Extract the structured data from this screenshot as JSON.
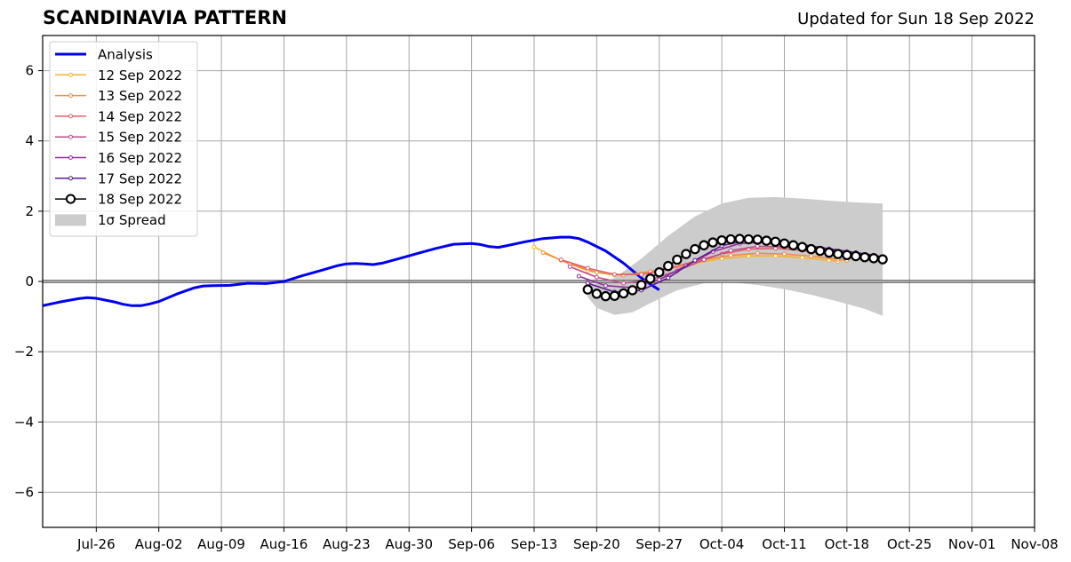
{
  "chart_data": {
    "type": "line",
    "title": "SCANDINAVIA PATTERN",
    "subtitle": "Updated for Sun 18 Sep 2022",
    "xlabel": "",
    "ylabel": "",
    "x_range": [
      "2022-07-20",
      "2022-11-08"
    ],
    "ylim": [
      -7,
      7
    ],
    "x_ticks": [
      {
        "date": "2022-07-26",
        "label": "Jul-26"
      },
      {
        "date": "2022-08-02",
        "label": "Aug-02"
      },
      {
        "date": "2022-08-09",
        "label": "Aug-09"
      },
      {
        "date": "2022-08-16",
        "label": "Aug-16"
      },
      {
        "date": "2022-08-23",
        "label": "Aug-23"
      },
      {
        "date": "2022-08-30",
        "label": "Aug-30"
      },
      {
        "date": "2022-09-06",
        "label": "Sep-06"
      },
      {
        "date": "2022-09-13",
        "label": "Sep-13"
      },
      {
        "date": "2022-09-20",
        "label": "Sep-20"
      },
      {
        "date": "2022-09-27",
        "label": "Sep-27"
      },
      {
        "date": "2022-10-04",
        "label": "Oct-04"
      },
      {
        "date": "2022-10-11",
        "label": "Oct-11"
      },
      {
        "date": "2022-10-18",
        "label": "Oct-18"
      },
      {
        "date": "2022-10-25",
        "label": "Oct-25"
      },
      {
        "date": "2022-11-01",
        "label": "Nov-01"
      },
      {
        "date": "2022-11-08",
        "label": "Nov-08"
      }
    ],
    "y_ticks": [
      {
        "value": -6,
        "label": "−6"
      },
      {
        "value": -4,
        "label": "−4"
      },
      {
        "value": -2,
        "label": "−2"
      },
      {
        "value": 0,
        "label": "0"
      },
      {
        "value": 2,
        "label": "2"
      },
      {
        "value": 4,
        "label": "4"
      },
      {
        "value": 6,
        "label": "6"
      }
    ],
    "grid": true,
    "legend_position": "top-left",
    "zero_line": 0,
    "analysis": {
      "name": "Analysis",
      "color": "#0000ee",
      "points": [
        [
          "2022-07-20",
          -0.69
        ],
        [
          "2022-07-22",
          -0.58
        ],
        [
          "2022-07-24",
          -0.49
        ],
        [
          "2022-07-25",
          -0.46
        ],
        [
          "2022-07-26",
          -0.48
        ],
        [
          "2022-07-28",
          -0.58
        ],
        [
          "2022-07-29",
          -0.65
        ],
        [
          "2022-07-30",
          -0.69
        ],
        [
          "2022-07-31",
          -0.69
        ],
        [
          "2022-08-01",
          -0.64
        ],
        [
          "2022-08-02",
          -0.57
        ],
        [
          "2022-08-04",
          -0.36
        ],
        [
          "2022-08-06",
          -0.18
        ],
        [
          "2022-08-07",
          -0.13
        ],
        [
          "2022-08-08",
          -0.12
        ],
        [
          "2022-08-10",
          -0.11
        ],
        [
          "2022-08-12",
          -0.05
        ],
        [
          "2022-08-14",
          -0.06
        ],
        [
          "2022-08-16",
          0.0
        ],
        [
          "2022-08-18",
          0.16
        ],
        [
          "2022-08-20",
          0.3
        ],
        [
          "2022-08-22",
          0.45
        ],
        [
          "2022-08-23",
          0.5
        ],
        [
          "2022-08-24",
          0.51
        ],
        [
          "2022-08-25",
          0.5
        ],
        [
          "2022-08-26",
          0.48
        ],
        [
          "2022-08-27",
          0.52
        ],
        [
          "2022-08-29",
          0.66
        ],
        [
          "2022-08-31",
          0.8
        ],
        [
          "2022-09-02",
          0.94
        ],
        [
          "2022-09-04",
          1.06
        ],
        [
          "2022-09-06",
          1.08
        ],
        [
          "2022-09-07",
          1.05
        ],
        [
          "2022-09-08",
          0.99
        ],
        [
          "2022-09-09",
          0.97
        ],
        [
          "2022-09-10",
          1.02
        ],
        [
          "2022-09-12",
          1.13
        ],
        [
          "2022-09-14",
          1.22
        ],
        [
          "2022-09-16",
          1.26
        ],
        [
          "2022-09-17",
          1.26
        ],
        [
          "2022-09-18",
          1.22
        ],
        [
          "2022-09-19",
          1.12
        ],
        [
          "2022-09-21",
          0.87
        ],
        [
          "2022-09-23",
          0.52
        ],
        [
          "2022-09-25",
          0.1
        ],
        [
          "2022-09-26",
          -0.08
        ],
        [
          "2022-09-27",
          -0.24
        ]
      ]
    },
    "forecasts": [
      {
        "name": "12 Sep 2022",
        "color": "#f7b32b",
        "points": [
          [
            "2022-09-13",
            0.98
          ],
          [
            "2022-09-16",
            0.6
          ],
          [
            "2022-09-19",
            0.3
          ],
          [
            "2022-09-22",
            0.18
          ],
          [
            "2022-09-25",
            0.22
          ],
          [
            "2022-09-28",
            0.36
          ],
          [
            "2022-10-01",
            0.52
          ],
          [
            "2022-10-04",
            0.65
          ],
          [
            "2022-10-07",
            0.72
          ],
          [
            "2022-10-10",
            0.73
          ],
          [
            "2022-10-13",
            0.68
          ],
          [
            "2022-10-16",
            0.6
          ],
          [
            "2022-10-17",
            0.57
          ]
        ]
      },
      {
        "name": "13 Sep 2022",
        "color": "#f18d3c",
        "points": [
          [
            "2022-09-14",
            0.82
          ],
          [
            "2022-09-17",
            0.5
          ],
          [
            "2022-09-20",
            0.26
          ],
          [
            "2022-09-23",
            0.18
          ],
          [
            "2022-09-26",
            0.28
          ],
          [
            "2022-09-29",
            0.44
          ],
          [
            "2022-10-02",
            0.62
          ],
          [
            "2022-10-05",
            0.74
          ],
          [
            "2022-10-08",
            0.8
          ],
          [
            "2022-10-11",
            0.78
          ],
          [
            "2022-10-14",
            0.72
          ],
          [
            "2022-10-17",
            0.63
          ],
          [
            "2022-10-18",
            0.6
          ]
        ]
      },
      {
        "name": "14 Sep 2022",
        "color": "#e45e6e",
        "points": [
          [
            "2022-09-16",
            0.62
          ],
          [
            "2022-09-19",
            0.38
          ],
          [
            "2022-09-22",
            0.2
          ],
          [
            "2022-09-25",
            0.2
          ],
          [
            "2022-09-28",
            0.35
          ],
          [
            "2022-10-01",
            0.58
          ],
          [
            "2022-10-04",
            0.78
          ],
          [
            "2022-10-07",
            0.92
          ],
          [
            "2022-10-10",
            0.94
          ],
          [
            "2022-10-13",
            0.88
          ],
          [
            "2022-10-16",
            0.78
          ],
          [
            "2022-10-19",
            0.68
          ]
        ]
      },
      {
        "name": "15 Sep 2022",
        "color": "#c24b8e",
        "points": [
          [
            "2022-09-17",
            0.42
          ],
          [
            "2022-09-20",
            0.12
          ],
          [
            "2022-09-23",
            -0.05
          ],
          [
            "2022-09-26",
            0.05
          ],
          [
            "2022-09-29",
            0.3
          ],
          [
            "2022-10-02",
            0.62
          ],
          [
            "2022-10-05",
            0.88
          ],
          [
            "2022-10-08",
            1.0
          ],
          [
            "2022-10-11",
            0.98
          ],
          [
            "2022-10-14",
            0.9
          ],
          [
            "2022-10-17",
            0.78
          ],
          [
            "2022-10-20",
            0.7
          ]
        ]
      },
      {
        "name": "16 Sep 2022",
        "color": "#932f9c",
        "points": [
          [
            "2022-09-18",
            0.15
          ],
          [
            "2022-09-21",
            -0.12
          ],
          [
            "2022-09-24",
            -0.18
          ],
          [
            "2022-09-27",
            0.05
          ],
          [
            "2022-09-30",
            0.45
          ],
          [
            "2022-10-03",
            0.85
          ],
          [
            "2022-10-06",
            1.08
          ],
          [
            "2022-10-09",
            1.12
          ],
          [
            "2022-10-12",
            1.05
          ],
          [
            "2022-10-15",
            0.95
          ],
          [
            "2022-10-18",
            0.85
          ],
          [
            "2022-10-21",
            0.75
          ]
        ]
      },
      {
        "name": "17 Sep 2022",
        "color": "#5d1a8f",
        "points": [
          [
            "2022-09-19",
            -0.05
          ],
          [
            "2022-09-22",
            -0.3
          ],
          [
            "2022-09-25",
            -0.25
          ],
          [
            "2022-09-28",
            0.1
          ],
          [
            "2022-10-01",
            0.6
          ],
          [
            "2022-10-04",
            1.02
          ],
          [
            "2022-10-07",
            1.18
          ],
          [
            "2022-10-10",
            1.15
          ],
          [
            "2022-10-13",
            1.05
          ],
          [
            "2022-10-16",
            0.93
          ],
          [
            "2022-10-19",
            0.82
          ],
          [
            "2022-10-22",
            0.7
          ]
        ]
      }
    ],
    "latest_forecast": {
      "name": "18 Sep 2022",
      "color": "#000000",
      "points": [
        [
          "2022-09-19",
          -0.23
        ],
        [
          "2022-09-20",
          -0.35
        ],
        [
          "2022-09-21",
          -0.42
        ],
        [
          "2022-09-22",
          -0.41
        ],
        [
          "2022-09-23",
          -0.34
        ],
        [
          "2022-09-24",
          -0.25
        ],
        [
          "2022-09-25",
          -0.1
        ],
        [
          "2022-09-26",
          0.08
        ],
        [
          "2022-09-27",
          0.26
        ],
        [
          "2022-09-28",
          0.44
        ],
        [
          "2022-09-29",
          0.62
        ],
        [
          "2022-09-30",
          0.78
        ],
        [
          "2022-10-01",
          0.92
        ],
        [
          "2022-10-02",
          1.03
        ],
        [
          "2022-10-03",
          1.11
        ],
        [
          "2022-10-04",
          1.17
        ],
        [
          "2022-10-05",
          1.2
        ],
        [
          "2022-10-06",
          1.21
        ],
        [
          "2022-10-07",
          1.2
        ],
        [
          "2022-10-08",
          1.19
        ],
        [
          "2022-10-09",
          1.16
        ],
        [
          "2022-10-10",
          1.13
        ],
        [
          "2022-10-11",
          1.08
        ],
        [
          "2022-10-12",
          1.03
        ],
        [
          "2022-10-13",
          0.98
        ],
        [
          "2022-10-14",
          0.92
        ],
        [
          "2022-10-15",
          0.87
        ],
        [
          "2022-10-16",
          0.82
        ],
        [
          "2022-10-17",
          0.78
        ],
        [
          "2022-10-18",
          0.75
        ],
        [
          "2022-10-19",
          0.72
        ],
        [
          "2022-10-20",
          0.69
        ],
        [
          "2022-10-21",
          0.66
        ],
        [
          "2022-10-22",
          0.63
        ]
      ]
    },
    "spread": {
      "name": "1σ Spread",
      "color": "#cccccc",
      "upper": [
        [
          "2022-09-19",
          -0.15
        ],
        [
          "2022-09-22",
          0.1
        ],
        [
          "2022-09-25",
          0.65
        ],
        [
          "2022-09-28",
          1.3
        ],
        [
          "2022-10-01",
          1.85
        ],
        [
          "2022-10-04",
          2.22
        ],
        [
          "2022-10-07",
          2.38
        ],
        [
          "2022-10-10",
          2.4
        ],
        [
          "2022-10-13",
          2.36
        ],
        [
          "2022-10-16",
          2.3
        ],
        [
          "2022-10-19",
          2.25
        ],
        [
          "2022-10-22",
          2.22
        ]
      ],
      "lower": [
        [
          "2022-09-19",
          -0.45
        ],
        [
          "2022-09-20",
          -0.75
        ],
        [
          "2022-09-22",
          -0.95
        ],
        [
          "2022-09-24",
          -0.88
        ],
        [
          "2022-09-26",
          -0.62
        ],
        [
          "2022-09-29",
          -0.25
        ],
        [
          "2022-10-02",
          -0.05
        ],
        [
          "2022-10-05",
          -0.02
        ],
        [
          "2022-10-08",
          -0.1
        ],
        [
          "2022-10-11",
          -0.22
        ],
        [
          "2022-10-14",
          -0.38
        ],
        [
          "2022-10-17",
          -0.57
        ],
        [
          "2022-10-20",
          -0.78
        ],
        [
          "2022-10-22",
          -0.98
        ]
      ]
    },
    "legend": [
      "Analysis",
      "12 Sep 2022",
      "13 Sep 2022",
      "14 Sep 2022",
      "15 Sep 2022",
      "16 Sep 2022",
      "17 Sep 2022",
      "18 Sep 2022",
      "1σ Spread"
    ]
  }
}
